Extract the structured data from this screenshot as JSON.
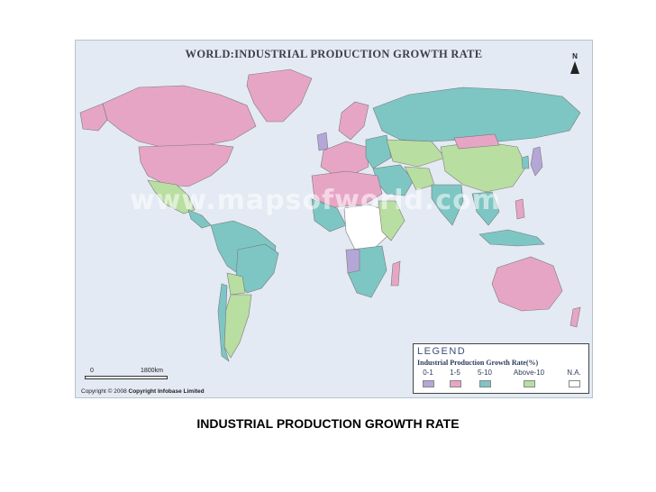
{
  "map": {
    "title": "WORLD:INDUSTRIAL PRODUCTION GROWTH RATE",
    "watermark": "www.mapsofworld.com",
    "north_label": "N",
    "scale": {
      "start": "0",
      "end": "1800km"
    },
    "copyright": {
      "prefix": "Copyright © 2008",
      "holder": "Copyright Infobase Limited"
    }
  },
  "legend": {
    "heading": "LEGEND",
    "subtitle": "Industrial Production Growth Rate(%)",
    "items": [
      {
        "label": "0-1",
        "color": "#b5a6d8"
      },
      {
        "label": "1-5",
        "color": "#e7a5c5"
      },
      {
        "label": "5-10",
        "color": "#7dc6c4"
      },
      {
        "label": "Above-10",
        "color": "#b9dea1"
      },
      {
        "label": "N.A.",
        "color": "#ffffff"
      }
    ]
  },
  "colors": {
    "ocean": "#e3eaf3",
    "border": "#7a7a7a"
  },
  "caption": "INDUSTRIAL PRODUCTION GROWTH RATE"
}
